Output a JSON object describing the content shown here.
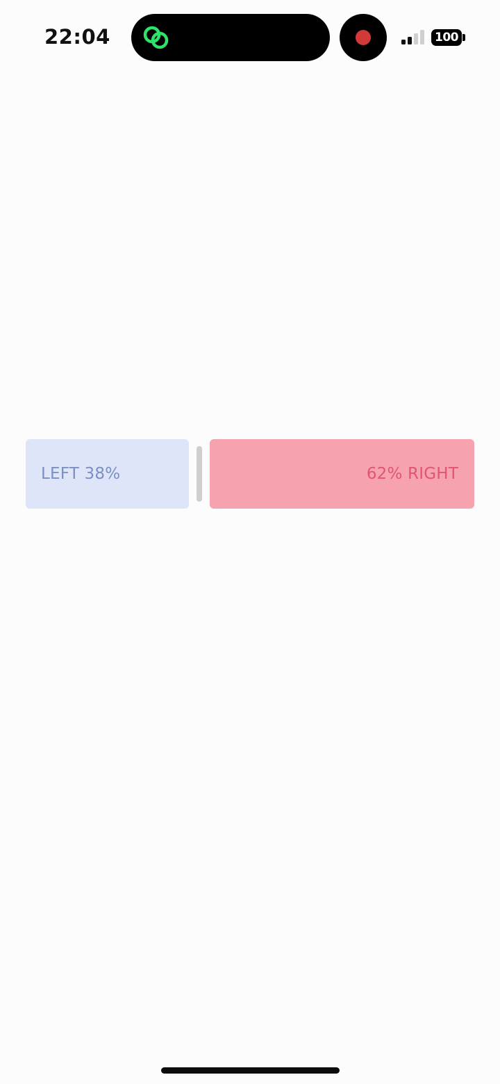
{
  "status_bar": {
    "time": "22:04",
    "battery_level": "100",
    "island_app_icon": "linked-rings-icon",
    "recording_indicator": "red-record-dot-icon",
    "signal_icon": "cellular-signal-icon",
    "signal_bars_active": 2,
    "signal_bars_total": 4,
    "colors": {
      "island_icon": "#2fe26a",
      "record_dot": "#d23a3a",
      "signal_active": "#111111",
      "signal_inactive": "#cfcfcf"
    }
  },
  "split_bar": {
    "left": {
      "label": "LEFT 38%",
      "percent": 38,
      "background": "#dfe5f8",
      "text_color": "#7a90c2"
    },
    "right": {
      "label": "62% RIGHT",
      "percent": 62,
      "background": "#f7a2af",
      "text_color": "#e0556f"
    }
  }
}
